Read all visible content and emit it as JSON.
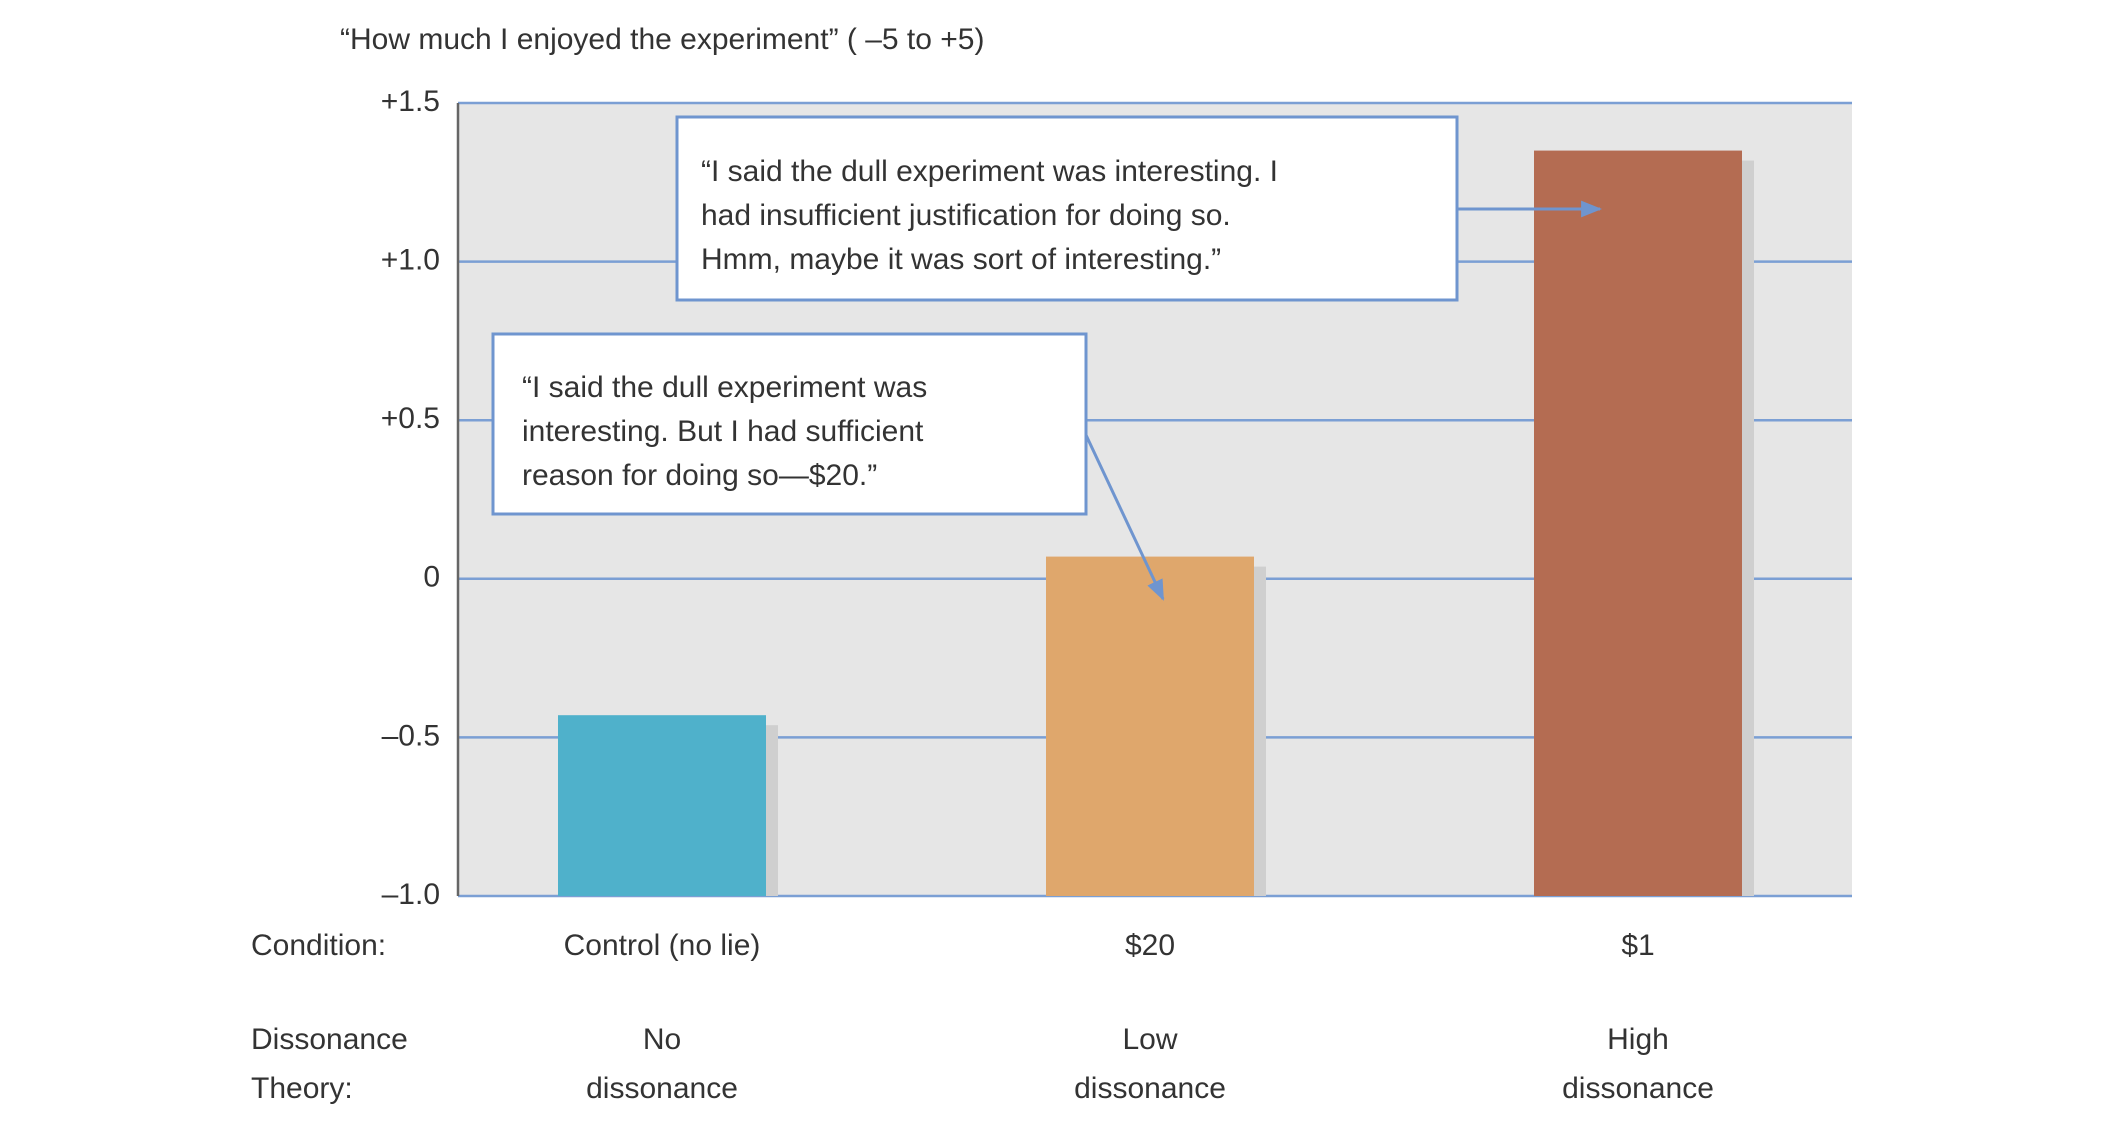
{
  "chart_data": {
    "type": "bar",
    "title": "“How much I enjoyed the experiment” ( –5 to +5)",
    "x_label": "Condition:",
    "categories": [
      "Control (no lie)",
      "$20",
      "$1"
    ],
    "values": [
      -0.43,
      0.07,
      1.35
    ],
    "colors": [
      "#4fb1cb",
      "#dfa76c",
      "#b46c52"
    ],
    "ylim": [
      -1.0,
      1.5
    ],
    "yticks": [
      {
        "value": -1.0,
        "label": "–1.0"
      },
      {
        "value": -0.5,
        "label": "–0.5"
      },
      0,
      {
        "value": 0.5,
        "label": "+0.5"
      },
      {
        "value": 1.0,
        "label": "+1.0"
      },
      {
        "value": 1.5,
        "label": "+1.5"
      }
    ],
    "grid": true,
    "row_label": [
      "Dissonance",
      "Theory:"
    ],
    "row_values": [
      [
        "No",
        "dissonance"
      ],
      [
        "Low",
        "dissonance"
      ],
      [
        "High",
        "dissonance"
      ]
    ],
    "annotations": [
      {
        "category": 2,
        "lines": [
          "“I said the dull experiment was interesting.  I",
          "had insufficient justification for doing so.",
          "Hmm, maybe it was sort of interesting.”"
        ]
      },
      {
        "category": 1,
        "lines": [
          "“I said the dull experiment was",
          "interesting.  But I had sufficient",
          "reason for doing so—$20.”"
        ]
      }
    ]
  }
}
